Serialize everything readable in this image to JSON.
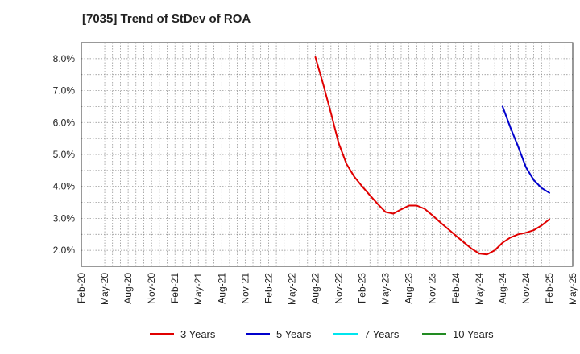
{
  "title": "[7035]  Trend of StDev of ROA",
  "chart_data": {
    "type": "line",
    "title": "[7035]  Trend of StDev of ROA",
    "xlabel": "",
    "ylabel": "",
    "x_ticks": [
      "Feb-20",
      "May-20",
      "Aug-20",
      "Nov-20",
      "Feb-21",
      "May-21",
      "Aug-21",
      "Nov-21",
      "Feb-22",
      "May-22",
      "Aug-22",
      "Nov-22",
      "Feb-23",
      "May-23",
      "Aug-23",
      "Nov-23",
      "Feb-24",
      "May-24",
      "Aug-24",
      "Nov-24",
      "Feb-25",
      "May-25"
    ],
    "y_ticks": [
      "2.0%",
      "3.0%",
      "4.0%",
      "5.0%",
      "6.0%",
      "7.0%",
      "8.0%"
    ],
    "ylim": [
      1.5,
      8.5
    ],
    "grid": true,
    "legend_position": "bottom",
    "series": [
      {
        "name": "3 Years",
        "color": "#e00000",
        "x": [
          "Aug-22",
          "Sep-22",
          "Oct-22",
          "Nov-22",
          "Dec-22",
          "Jan-23",
          "Feb-23",
          "Mar-23",
          "Apr-23",
          "May-23",
          "Jun-23",
          "Jul-23",
          "Aug-23",
          "Sep-23",
          "Oct-23",
          "Nov-23",
          "Dec-23",
          "Jan-24",
          "Feb-24",
          "Mar-24",
          "Apr-24",
          "May-24",
          "Jun-24",
          "Jul-24",
          "Aug-24",
          "Sep-24",
          "Oct-24",
          "Nov-24",
          "Dec-24",
          "Jan-25",
          "Feb-25"
        ],
        "values": [
          8.05,
          7.2,
          6.3,
          5.35,
          4.7,
          4.3,
          4.0,
          3.72,
          3.45,
          3.2,
          3.15,
          3.28,
          3.4,
          3.4,
          3.3,
          3.1,
          2.88,
          2.67,
          2.46,
          2.26,
          2.06,
          1.9,
          1.87,
          2.0,
          2.24,
          2.4,
          2.5,
          2.55,
          2.63,
          2.78,
          2.97
        ]
      },
      {
        "name": "5 Years",
        "color": "#0000cc",
        "x": [
          "Aug-24",
          "Sep-24",
          "Oct-24",
          "Nov-24",
          "Dec-24",
          "Jan-25",
          "Feb-25"
        ],
        "values": [
          6.5,
          5.85,
          5.25,
          4.6,
          4.2,
          3.95,
          3.8
        ]
      },
      {
        "name": "7 Years",
        "color": "#00e5ee",
        "x": [],
        "values": []
      },
      {
        "name": "10 Years",
        "color": "#228b22",
        "x": [],
        "values": []
      }
    ]
  }
}
